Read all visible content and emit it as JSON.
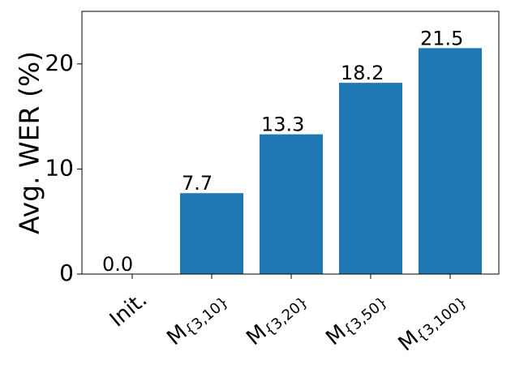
{
  "chart_data": {
    "type": "bar",
    "y_label": "Avg. WER (%)",
    "categories": [
      "Init.",
      "M{3,10}",
      "M{3,20}",
      "M{3,50}",
      "M{3,100}"
    ],
    "values": [
      0,
      7.7,
      13.3,
      18.2,
      21.5
    ],
    "value_labels": [
      "0.0",
      "7.7",
      "13.3",
      "18.2",
      "21.5"
    ],
    "color": "#1f77b4",
    "ylim": [
      0,
      25
    ],
    "yticks": [
      0,
      10,
      20
    ]
  }
}
